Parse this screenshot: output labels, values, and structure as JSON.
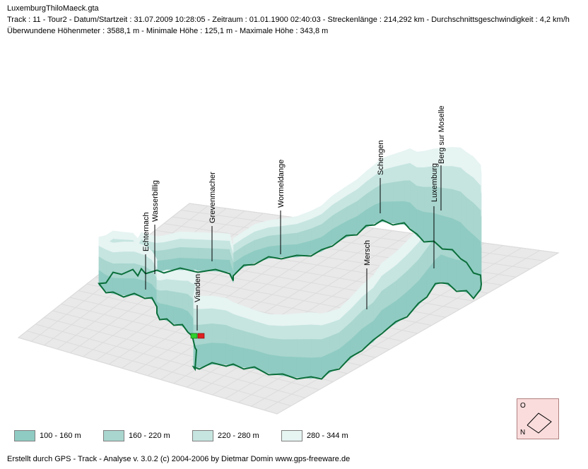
{
  "header": {
    "filename": "LuxemburgThiloMaeck.gta",
    "line1": "Track : 11 - Tour2 - Datum/Startzeit : 31.07.2009 10:28:05 - Zeitraum : 01.01.1900 02:40:03 - Streckenlänge : 214,292 km - Durchschnittsgeschwindigkeit : 4,2 km/h",
    "line2": "Überwundene Höhenmeter : 3588,1 m  -  Minimale Höhe : 125,1 m  -  Maximale Höhe : 343,8 m"
  },
  "chart_data": {
    "type": "area",
    "places": [
      "Echternach",
      "Wasserbillig",
      "Grevenmacher",
      "Wormeldange",
      "Schengen",
      "Luxemburg",
      "Berg sur Moselle",
      "Mersch",
      "Vianden"
    ],
    "elevation_bands": [
      {
        "label": "100 - 160 m",
        "color": "#8fcbc2"
      },
      {
        "label": "160 - 220 m",
        "color": "#a9d6cf"
      },
      {
        "label": "220 - 280 m",
        "color": "#c6e5e0"
      },
      {
        "label": "280 - 344 m",
        "color": "#e6f4f2"
      }
    ],
    "colors": {
      "track": "#0a6e3a",
      "grid": "#dcdcdc",
      "ground": "#e9e9e9"
    }
  },
  "compass": {
    "top_letter": "O",
    "bottom_letter": "N"
  },
  "footer": "Erstellt durch  GPS - Track - Analyse   v. 3.0.2   (c) 2004-2006 by Dietmar Domin  www.gps-freeware.de"
}
